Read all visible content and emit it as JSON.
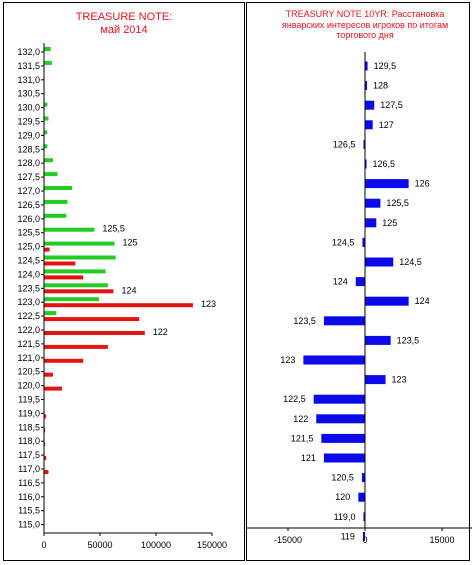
{
  "colors": {
    "green": "#22cc22",
    "red": "#e3140f",
    "blue": "#0b0bea",
    "axis": "#000000",
    "title": "#e8141c"
  },
  "left": {
    "title": "TREASURE NOTE:",
    "subtitle": "май 2014",
    "chart_data": {
      "type": "bar",
      "orientation": "horizontal",
      "xlim": [
        0,
        150000
      ],
      "xticks": [
        "0",
        "50000",
        "100000",
        "150000"
      ],
      "categories": [
        "132,0",
        "131,5",
        "131,0",
        "130,5",
        "130,0",
        "129,5",
        "129,0",
        "128,5",
        "128,0",
        "127,5",
        "127,0",
        "126,5",
        "126,0",
        "125,5",
        "125,0",
        "124,5",
        "124,0",
        "123,5",
        "123,0",
        "122,5",
        "122,0",
        "121,5",
        "121,0",
        "120,5",
        "120,0",
        "119,5",
        "119,0",
        "118,5",
        "118,0",
        "117,5",
        "117,0",
        "116,5",
        "116,0",
        "115,5",
        "115,0"
      ],
      "series": [
        {
          "color": "green",
          "values": [
            6000,
            7000,
            0,
            0,
            3000,
            4000,
            3000,
            3000,
            8000,
            12000,
            25000,
            21000,
            20000,
            45000,
            63000,
            64000,
            55000,
            57000,
            49000,
            11000,
            0,
            0,
            0,
            0,
            0,
            0,
            0,
            0,
            0,
            0,
            0,
            0,
            0,
            0,
            0
          ]
        },
        {
          "color": "red",
          "values": [
            0,
            0,
            0,
            0,
            0,
            0,
            0,
            0,
            0,
            0,
            0,
            0,
            0,
            0,
            5000,
            28000,
            35000,
            62000,
            133000,
            85000,
            90000,
            57000,
            35000,
            8000,
            16000,
            0,
            2000,
            1000,
            1000,
            2000,
            4000,
            0,
            0,
            0,
            0
          ]
        }
      ],
      "annotations": [
        {
          "text": "125,5",
          "category": "125,5"
        },
        {
          "text": "125",
          "category": "125,0"
        },
        {
          "text": "124",
          "category": "123,5"
        },
        {
          "text": "123",
          "category": "123,0"
        },
        {
          "text": "122",
          "category": "122,0"
        }
      ]
    }
  },
  "right": {
    "title": "TREASURY NOTE 10YR: Расстановка январских интересов игроков по итогам торгового дня",
    "chart_data": {
      "type": "bar",
      "orientation": "horizontal",
      "xlim": [
        -30000,
        30000
      ],
      "xticks": [
        "-30000",
        "-15000",
        "0",
        "15000",
        "30000"
      ],
      "bars": [
        {
          "label": "129,5",
          "value": 500
        },
        {
          "label": "128",
          "value": 400
        },
        {
          "label": "127,5",
          "value": 1800
        },
        {
          "label": "127",
          "value": 1500
        },
        {
          "label": "126,5",
          "value": -300
        },
        {
          "label": "126,5",
          "value": 300
        },
        {
          "label": "126",
          "value": 8500
        },
        {
          "label": "125,5",
          "value": 3000
        },
        {
          "label": "125",
          "value": 2200
        },
        {
          "label": "124,5",
          "value": -500
        },
        {
          "label": "124,5",
          "value": 5500
        },
        {
          "label": "124",
          "value": -1800
        },
        {
          "label": "124",
          "value": 8500
        },
        {
          "label": "123,5",
          "value": -8000
        },
        {
          "label": "123,5",
          "value": 5000
        },
        {
          "label": "123",
          "value": -12000
        },
        {
          "label": "123",
          "value": 4000
        },
        {
          "label": "122,5",
          "value": -10000
        },
        {
          "label": "122",
          "value": -9500
        },
        {
          "label": "121,5",
          "value": -8500
        },
        {
          "label": "121",
          "value": -8000
        },
        {
          "label": "120,5",
          "value": -600
        },
        {
          "label": "120",
          "value": -1300
        },
        {
          "label": "119,0",
          "value": -300
        },
        {
          "label": "119",
          "value": -400
        }
      ]
    }
  }
}
